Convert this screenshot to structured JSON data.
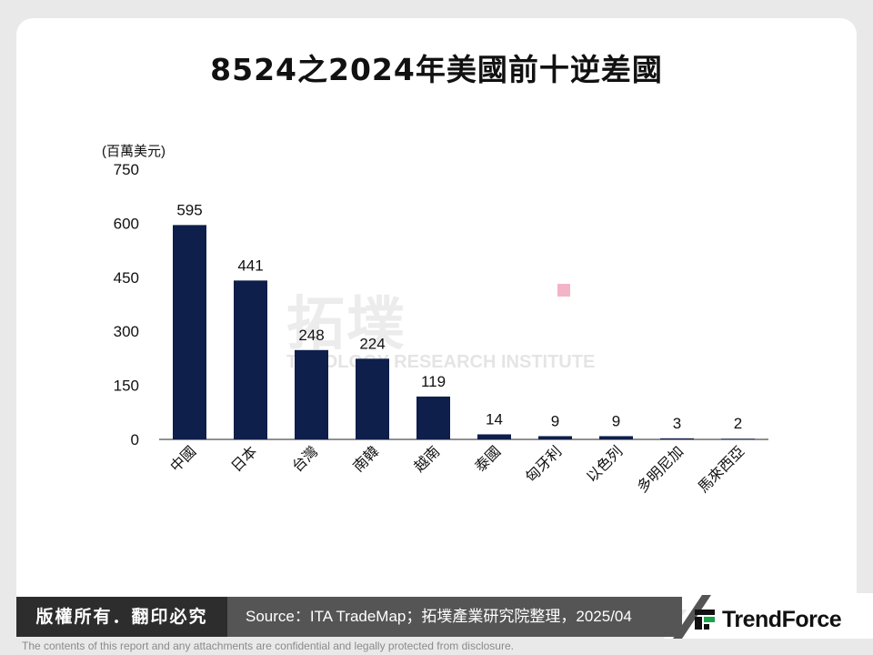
{
  "chart_data": {
    "type": "bar",
    "title": "8524之2024年美國前十逆差國",
    "unit_label": "(百萬美元)",
    "categories": [
      "中國",
      "日本",
      "台灣",
      "南韓",
      "越南",
      "泰國",
      "匈牙利",
      "以色列",
      "多明尼加",
      "馬來西亞"
    ],
    "values": [
      595,
      441,
      248,
      224,
      119,
      14,
      9,
      9,
      3,
      2
    ],
    "ylim": [
      0,
      750
    ],
    "yticks": [
      0,
      150,
      300,
      450,
      600,
      750
    ],
    "bar_color": "#0d1f4a",
    "grid": false,
    "legend": "none"
  },
  "watermark": {
    "chinese": "拓墣",
    "english": "TOPOLOGY RESEARCH INSTITUTE"
  },
  "footer": {
    "copyright": "版權所有．翻印必究",
    "source": "Source：ITA TradeMap；拓墣產業研究院整理，2025/04",
    "brand": "TrendForce",
    "disclaimer": "The contents of this report and any attachments are confidential and legally protected from disclosure."
  }
}
